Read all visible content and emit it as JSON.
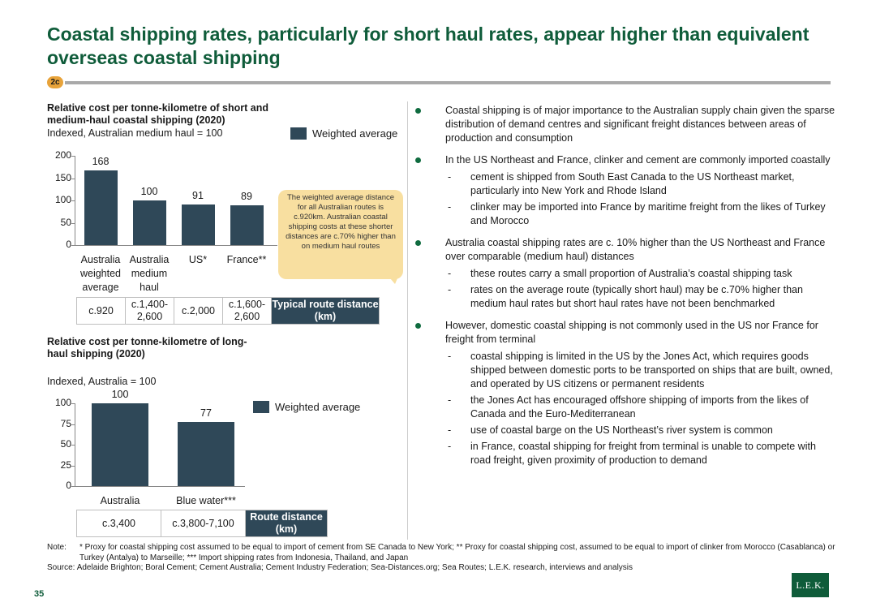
{
  "title": "Coastal shipping rates, particularly for short haul rates, appear higher than equivalent overseas coastal shipping",
  "section_tag": "2c",
  "chart1": {
    "title": "Relative cost per tonne-kilometre of short and medium-haul coastal shipping (2020)",
    "subtitle": "Indexed, Australian medium haul = 100",
    "legend": "Weighted average",
    "ticks": [
      "200",
      "150",
      "100",
      "50",
      "0"
    ],
    "value_labels": [
      "168",
      "100",
      "91",
      "89"
    ],
    "categories": [
      "Australia weighted average",
      "Australia medium haul",
      "US*",
      "France**"
    ],
    "distances": [
      "c.920",
      "c.1,400-2,600",
      "c.2,000",
      "c.1,600-2,600"
    ],
    "distance_header": "Typical route distance (km)",
    "callout": "The weighted average distance for all Australian routes is c.920km. Australian coastal shipping costs at these shorter distances are c.70% higher than on medium haul routes"
  },
  "chart2": {
    "title": "Relative cost per tonne-kilometre of long-haul shipping (2020)",
    "subtitle": "Indexed, Australia = 100",
    "legend": "Weighted average",
    "ticks": [
      "100",
      "75",
      "50",
      "25",
      "0"
    ],
    "value_labels": [
      "100",
      "77"
    ],
    "categories": [
      "Australia",
      "Blue water***"
    ],
    "distances": [
      "c.3,400",
      "c.3,800-7,100"
    ],
    "distance_header": "Route distance (km)"
  },
  "chart_data": [
    {
      "type": "bar",
      "categories": [
        "Australia weighted average",
        "Australia medium haul",
        "US*",
        "France**"
      ],
      "values": [
        168,
        100,
        91,
        89
      ],
      "title": "Relative cost per tonne-kilometre of short and medium-haul coastal shipping (2020)",
      "ylabel": "Indexed, Australian medium haul = 100",
      "ylim": [
        0,
        200
      ],
      "colors": [
        "#2f4858"
      ]
    },
    {
      "type": "bar",
      "categories": [
        "Australia",
        "Blue water***"
      ],
      "values": [
        100,
        77
      ],
      "title": "Relative cost per tonne-kilometre of long-haul shipping (2020)",
      "ylabel": "Indexed, Australia = 100",
      "ylim": [
        0,
        100
      ],
      "colors": [
        "#2f4858"
      ]
    }
  ],
  "bullets": [
    {
      "text": "Coastal shipping is of major importance to the Australian supply chain given the sparse distribution of demand centres and significant freight distances between areas of production and consumption",
      "subs": []
    },
    {
      "text": "In the US Northeast and France, clinker and cement are commonly imported coastally",
      "subs": [
        "cement is shipped from South East Canada to the US Northeast market, particularly into New York and Rhode Island",
        "clinker may be imported into France by maritime freight from the likes of Turkey and Morocco"
      ]
    },
    {
      "text": "Australia coastal shipping rates are c. 10% higher than the US Northeast and France  over comparable (medium haul) distances",
      "subs": [
        "these routes carry a small proportion of Australia’s coastal shipping task",
        "rates on the average route (typically short haul) may be c.70% higher than medium haul rates but short haul rates have not been benchmarked"
      ]
    },
    {
      "text": "However, domestic coastal shipping is not commonly used in the US nor France for freight from terminal",
      "subs": [
        "coastal shipping is limited in the US by the Jones Act, which requires goods shipped between domestic ports to be transported on ships that are built, owned, and operated by US citizens or permanent residents",
        "the Jones Act has encouraged offshore shipping of imports from the likes of Canada and the Euro-Mediterranean",
        "use of coastal barge on the US Northeast’s river system is common",
        "in France, coastal shipping for freight from terminal is unable to compete with road freight, given proximity of production to demand"
      ]
    }
  ],
  "notes": {
    "note_label": "Note:",
    "note_text": "* Proxy for coastal shipping cost assumed to be equal to import of cement from SE Canada to New York; ** Proxy for coastal shipping cost, assumed to be equal to import of clinker from Morocco (Casablanca) or Turkey (Antalya) to Marseille; *** Import shipping rates from Indonesia, Thailand, and Japan",
    "source": "Source: Adelaide Brighton; Boral Cement; Cement Australia; Cement Industry Federation; Sea-Distances.org; Sea Routes; L.E.K. research, interviews and analysis"
  },
  "page_number": "35",
  "logo_text": "L.E.K."
}
